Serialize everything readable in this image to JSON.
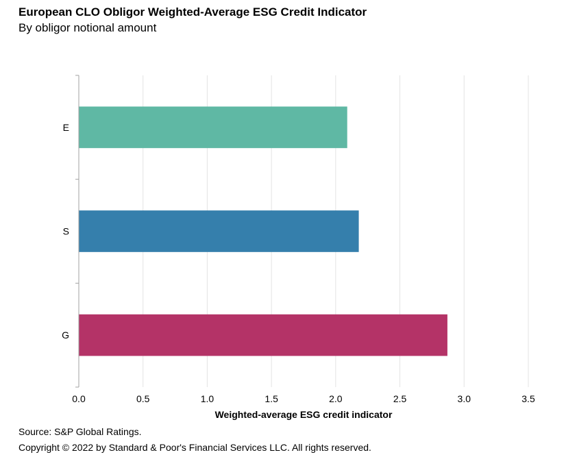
{
  "header": {
    "title": "European CLO Obligor Weighted-Average ESG Credit Indicator",
    "subtitle": "By obligor notional amount"
  },
  "footer": {
    "source": "Source: S&P Global Ratings.",
    "copyright": "Copyright © 2022 by Standard & Poor's Financial Services LLC. All rights reserved."
  },
  "chart_data": {
    "type": "bar",
    "orientation": "horizontal",
    "categories": [
      "E",
      "S",
      "G"
    ],
    "values": [
      2.09,
      2.18,
      2.87
    ],
    "colors": [
      "#5fb8a4",
      "#357fac",
      "#b43367"
    ],
    "xlabel": "Weighted-average ESG credit indicator",
    "ylabel": "",
    "xlim": [
      0,
      3.5
    ],
    "xticks": [
      "0.0",
      "0.5",
      "1.0",
      "1.5",
      "2.0",
      "2.5",
      "3.0",
      "3.5"
    ],
    "grid": true,
    "legend": "none"
  }
}
